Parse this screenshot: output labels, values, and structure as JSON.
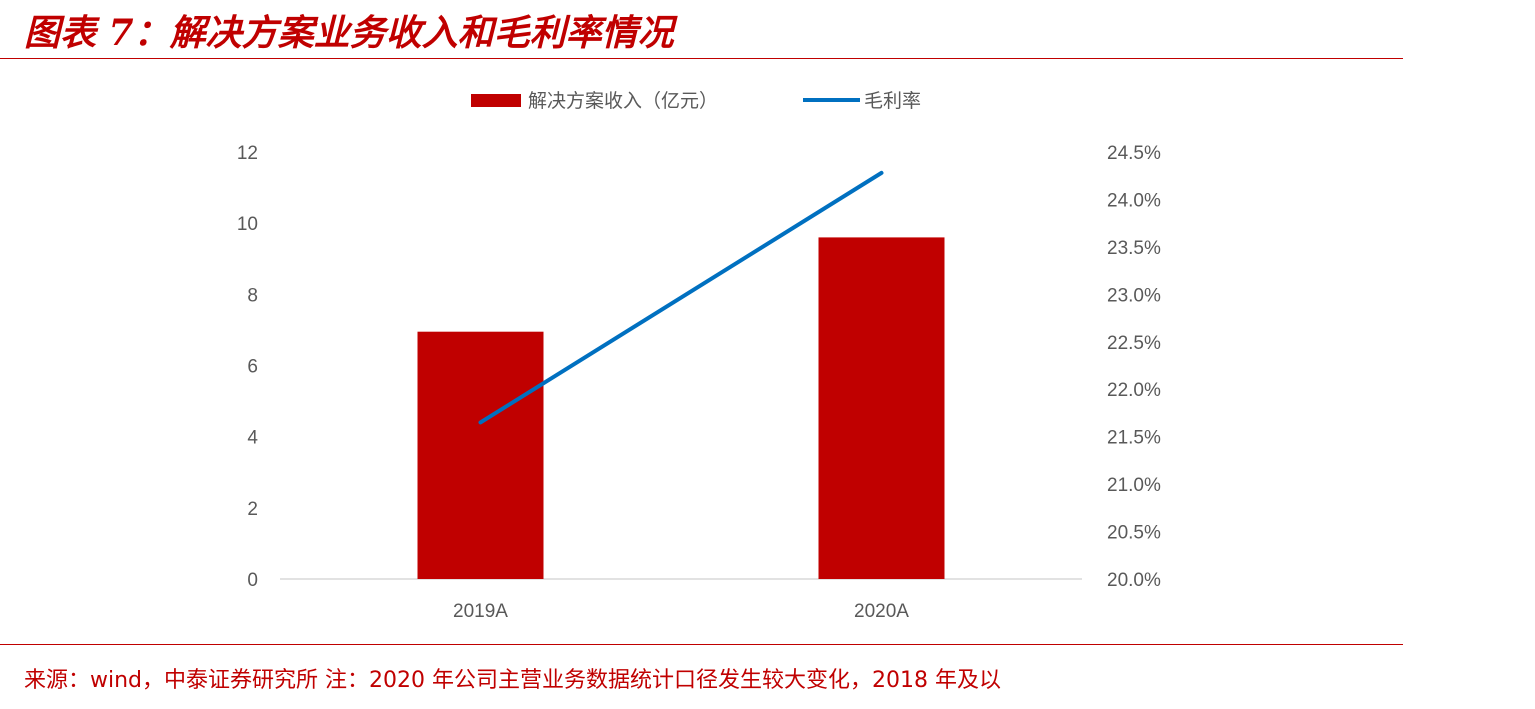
{
  "header": {
    "title": "图表 7：解决方案业务收入和毛利率情况"
  },
  "footer": {
    "source": "来源：wind，中泰证券研究所   注：2020 年公司主营业务数据统计口径发生较大变化，2018 年及以"
  },
  "colors": {
    "bar": "#c00000",
    "line": "#0070c0",
    "rule": "#c00000",
    "axis": "#d9d9d9"
  },
  "chart_data": {
    "type": "bar",
    "categories": [
      "2019A",
      "2020A"
    ],
    "series": [
      {
        "name": "解决方案收入（亿元）",
        "type": "bar",
        "axis": "left",
        "values": [
          6.95,
          9.6
        ]
      },
      {
        "name": "毛利率",
        "type": "line",
        "axis": "right",
        "values": [
          0.2165,
          0.2428
        ]
      }
    ],
    "y_left": {
      "ylim": [
        0,
        12
      ],
      "ticks": [
        "0",
        "2",
        "4",
        "6",
        "8",
        "10",
        "12"
      ]
    },
    "y_right": {
      "ylim": [
        0.2,
        0.245
      ],
      "ticks": [
        "20.0%",
        "20.5%",
        "21.0%",
        "21.5%",
        "22.0%",
        "22.5%",
        "23.0%",
        "23.5%",
        "24.0%",
        "24.5%"
      ]
    },
    "legend_position": "top",
    "grid": false
  }
}
